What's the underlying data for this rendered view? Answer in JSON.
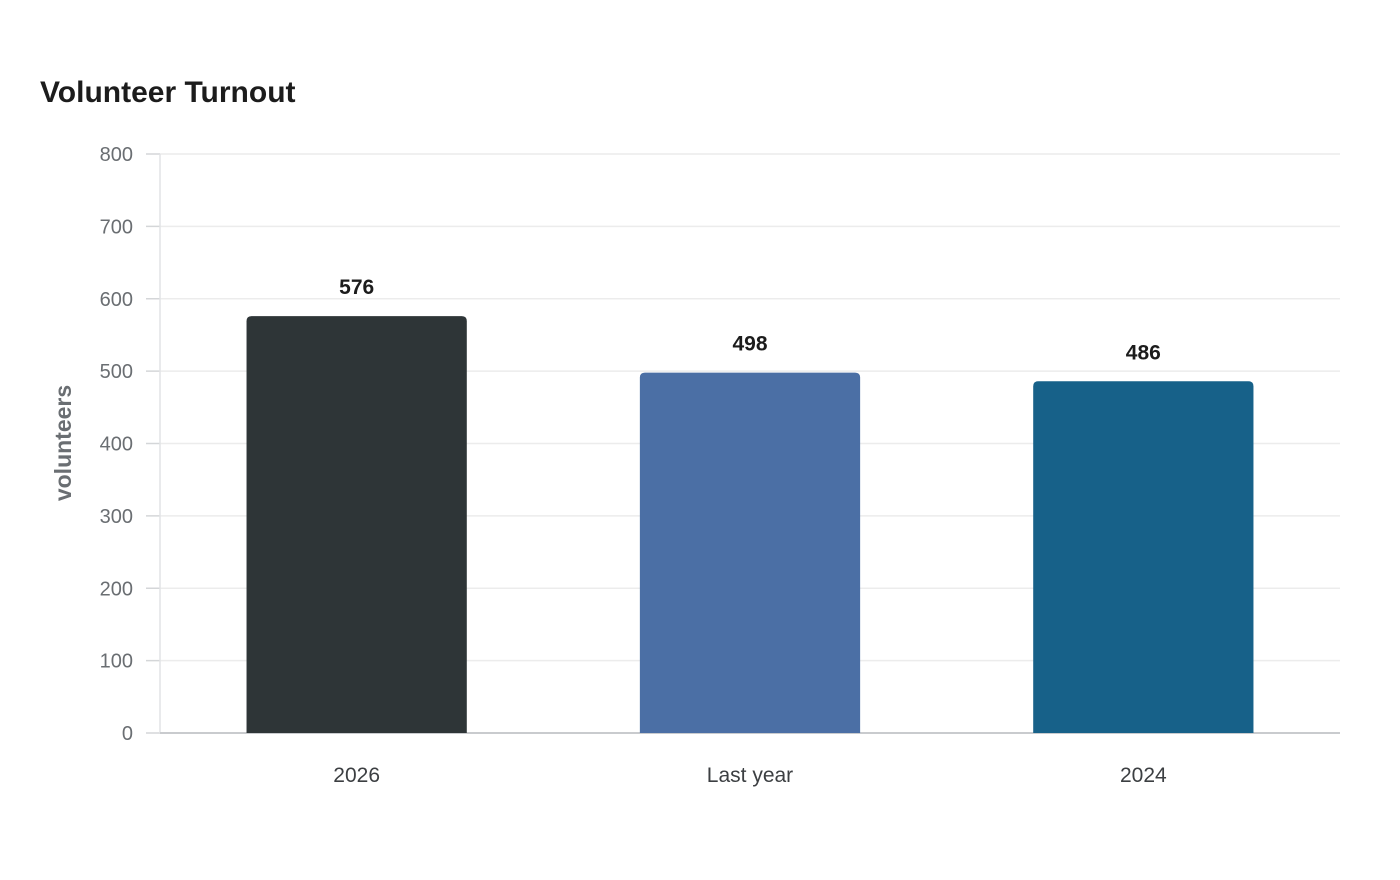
{
  "chart_data": {
    "type": "bar",
    "title": "Volunteer Turnout",
    "xlabel": "",
    "ylabel": "volunteers",
    "categories": [
      "2026",
      "Last year",
      "2024"
    ],
    "values": [
      576,
      498,
      486
    ],
    "colors": [
      "#2e3537",
      "#4b6fa5",
      "#176189"
    ],
    "ylim": [
      0,
      800
    ],
    "yticks": [
      0,
      100,
      200,
      300,
      400,
      500,
      600,
      700,
      800
    ],
    "grid": true,
    "legend": "none"
  }
}
